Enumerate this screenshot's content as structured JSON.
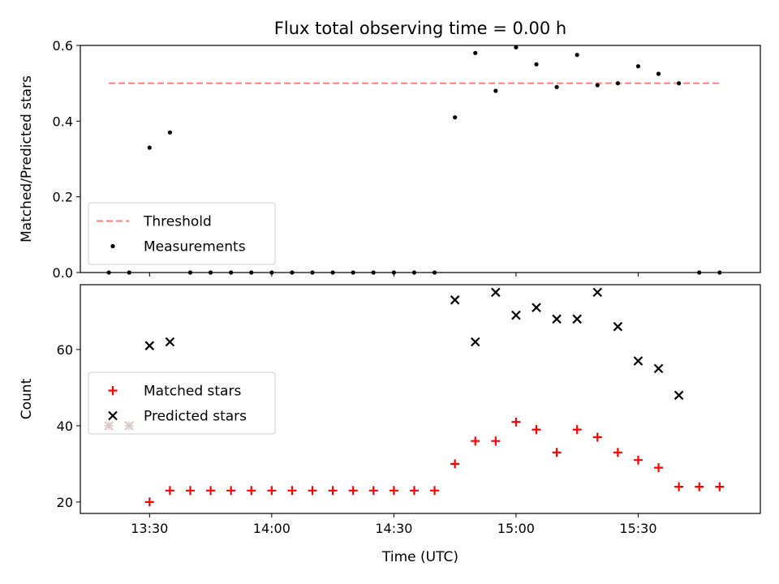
{
  "chart_data": [
    {
      "type": "scatter",
      "title": "Flux total observing time = 0.00 h",
      "xlabel": "",
      "ylabel": "Matched/Predicted stars",
      "xlim": [
        "13:13",
        "16:00"
      ],
      "ylim": [
        0,
        0.6
      ],
      "yticks": [
        "0.0",
        "0.2",
        "0.4",
        "0.6"
      ],
      "legend": {
        "position": "lower-left"
      },
      "series": [
        {
          "name": "Threshold",
          "style": "dashed-line",
          "color": "#ff7f7f",
          "x": [
            "13:20",
            "15:50"
          ],
          "y": [
            0.5,
            0.5
          ]
        },
        {
          "name": "Measurements",
          "style": "dot",
          "color": "#000000",
          "x": [
            "13:20",
            "13:25",
            "13:30",
            "13:35",
            "13:40",
            "13:45",
            "13:50",
            "13:55",
            "14:00",
            "14:05",
            "14:10",
            "14:15",
            "14:20",
            "14:25",
            "14:30",
            "14:35",
            "14:40",
            "14:45",
            "14:50",
            "14:55",
            "15:00",
            "15:05",
            "15:10",
            "15:15",
            "15:20",
            "15:25",
            "15:30",
            "15:35",
            "15:40",
            "15:45",
            "15:50"
          ],
          "y": [
            0,
            0,
            0.33,
            0.37,
            0,
            0,
            0,
            0,
            0,
            0,
            0,
            0,
            0,
            0,
            0,
            0,
            0,
            0.41,
            0.58,
            0.48,
            0.595,
            0.55,
            0.49,
            0.575,
            0.495,
            0.5,
            0.545,
            0.525,
            0.5,
            0,
            0
          ]
        }
      ]
    },
    {
      "type": "scatter",
      "title": "",
      "xlabel": "Time (UTC)",
      "ylabel": "Count",
      "xlim": [
        "13:13",
        "16:00"
      ],
      "ylim": [
        17,
        77
      ],
      "xticks": [
        "13:30",
        "14:00",
        "14:30",
        "15:00",
        "15:30"
      ],
      "yticks": [
        "20",
        "40",
        "60"
      ],
      "legend": {
        "position": "center-left"
      },
      "series": [
        {
          "name": "Matched stars",
          "style": "plus",
          "color": "#ff0000",
          "x": [
            "13:20",
            "13:25",
            "13:30",
            "13:35",
            "13:40",
            "13:45",
            "13:50",
            "13:55",
            "14:00",
            "14:05",
            "14:10",
            "14:15",
            "14:20",
            "14:25",
            "14:30",
            "14:35",
            "14:40",
            "14:45",
            "14:50",
            "14:55",
            "15:00",
            "15:05",
            "15:10",
            "15:15",
            "15:20",
            "15:25",
            "15:30",
            "15:35",
            "15:40",
            "15:45",
            "15:50"
          ],
          "y": [
            40,
            40,
            20,
            23,
            23,
            23,
            23,
            23,
            23,
            23,
            23,
            23,
            23,
            23,
            23,
            23,
            23,
            30,
            36,
            36,
            41,
            39,
            33,
            39,
            37,
            33,
            31,
            29,
            24,
            24,
            24
          ]
        },
        {
          "name": "Predicted stars",
          "style": "x",
          "color": "#000000",
          "x": [
            "13:20",
            "13:25",
            "13:30",
            "13:35",
            "14:45",
            "14:50",
            "14:55",
            "15:00",
            "15:05",
            "15:10",
            "15:15",
            "15:20",
            "15:25",
            "15:30",
            "15:35",
            "15:40"
          ],
          "y": [
            40,
            40,
            61,
            62,
            73,
            62,
            75,
            69,
            71,
            68,
            68,
            75,
            66,
            57,
            55,
            48
          ]
        }
      ]
    }
  ]
}
